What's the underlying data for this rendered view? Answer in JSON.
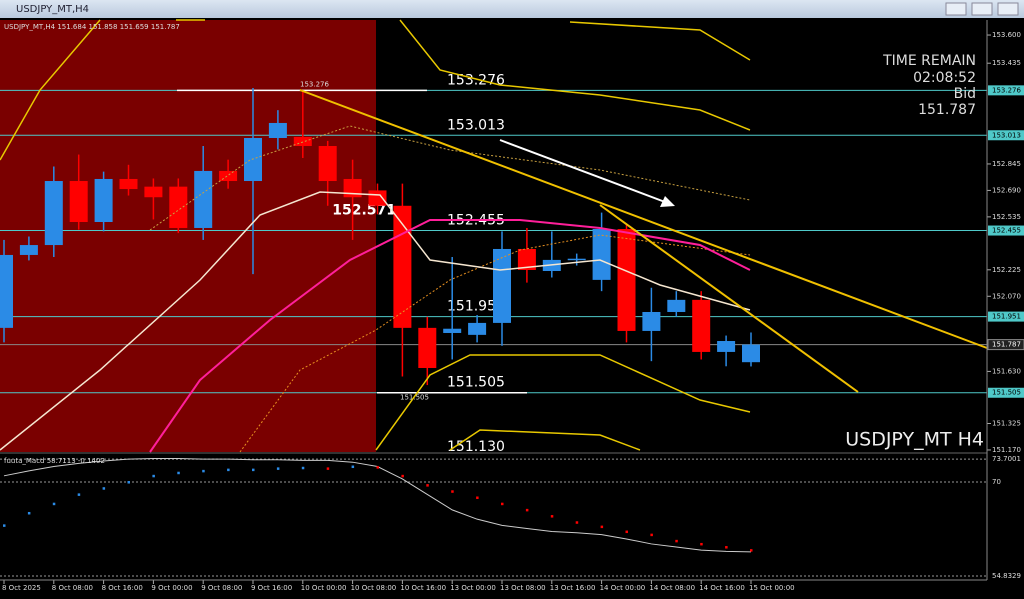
{
  "window_title": "USDJPY_MT,H4",
  "chart_data": {
    "type": "candlestick",
    "header": "USDJPY_MT,H4  151.684 151.858 151.659 151.787",
    "symbol_label": "USDJPY_MT H4",
    "time_remain_label": "TIME REMAIN",
    "time_remain": "02:08:52",
    "bid_label": "Bid",
    "bid": 151.787,
    "annotation": 152.571,
    "categories": [
      "8 Oct 2025",
      null,
      "8 Oct 08:00",
      null,
      "8 Oct 16:00",
      null,
      "9 Oct 00:00",
      null,
      "9 Oct 08:00",
      null,
      "9 Oct 16:00",
      null,
      "10 Oct 00:00",
      null,
      "10 Oct 08:00",
      null,
      "10 Oct 16:00",
      null,
      "13 Oct 00:00",
      null,
      "13 Oct 08:00",
      null,
      "13 Oct 16:00",
      null,
      "14 Oct 00:00",
      null,
      "14 Oct 08:00",
      null,
      "14 Oct 16:00",
      null,
      "15 Oct 00:00"
    ],
    "open": [
      151.885,
      152.312,
      152.37,
      152.745,
      152.505,
      152.757,
      152.712,
      152.712,
      152.47,
      152.804,
      152.745,
      152.997,
      153.003,
      152.95,
      152.757,
      152.69,
      152.6,
      151.885,
      151.855,
      151.844,
      151.914,
      152.347,
      152.218,
      152.283,
      152.166,
      152.464,
      151.867,
      151.978,
      152.049,
      151.744,
      151.684
    ],
    "high": [
      152.4,
      152.42,
      152.83,
      152.9,
      152.8,
      152.84,
      152.76,
      152.76,
      152.95,
      152.87,
      153.29,
      153.16,
      153.27,
      152.98,
      152.87,
      152.73,
      152.73,
      151.95,
      152.3,
      151.96,
      152.45,
      152.47,
      152.45,
      152.32,
      152.56,
      152.49,
      152.12,
      152.1,
      152.1,
      151.84,
      151.858
    ],
    "low": [
      151.8,
      152.28,
      152.3,
      152.46,
      152.45,
      152.66,
      152.52,
      152.44,
      152.4,
      152.7,
      152.2,
      152.93,
      152.88,
      152.6,
      152.4,
      152.55,
      151.6,
      151.55,
      151.7,
      151.8,
      151.78,
      152.15,
      152.18,
      152.25,
      152.1,
      151.8,
      151.69,
      151.95,
      151.7,
      151.66,
      151.659
    ],
    "close": [
      152.312,
      152.37,
      152.745,
      152.505,
      152.757,
      152.698,
      152.65,
      152.47,
      152.804,
      152.745,
      152.997,
      153.085,
      152.95,
      152.745,
      152.65,
      152.6,
      151.885,
      151.65,
      151.88,
      151.914,
      152.347,
      152.224,
      152.283,
      152.29,
      152.464,
      151.867,
      151.978,
      152.049,
      151.744,
      151.808,
      151.787
    ],
    "up_color": "#2b8be6",
    "down_color": "#ff0000",
    "ylim": [
      151.158,
      153.688
    ],
    "yticks": [
      {
        "value": 153.6,
        "label": "153.600"
      },
      153.435,
      152.845,
      {
        "value": 152.69,
        "label": "152.690"
      },
      152.535,
      152.225,
      {
        "value": 152.07,
        "label": "152.070"
      },
      {
        "value": 151.63,
        "label": "151.630"
      },
      151.325,
      {
        "value": 151.17,
        "label": "151.170"
      }
    ],
    "levels": [
      153.276,
      153.013,
      152.455,
      151.951,
      151.505,
      {
        "value": 151.13,
        "label": "151.130"
      }
    ],
    "oscillator": {
      "label": "fuuta_Macd 58.7113 -0.1402",
      "ylim": [
        54.5,
        74.2
      ],
      "yticks": [
        73.7001,
        70,
        54.8329
      ],
      "line": [
        71,
        71.8,
        72.5,
        73,
        73.4,
        73.7,
        73.8,
        73.8,
        73.7,
        73.7,
        73.6,
        73.6,
        73.5,
        73.5,
        73.2,
        72.5,
        70.5,
        68,
        65.5,
        64,
        63,
        62.5,
        62,
        61.8,
        61.5,
        60.8,
        60,
        59.5,
        59,
        58.8,
        58.7113
      ],
      "dots": [
        63,
        65,
        66.5,
        68,
        69,
        70,
        71,
        71.5,
        71.8,
        72,
        72,
        72.2,
        72.3,
        72.2,
        72.5,
        72.4,
        71,
        69.5,
        68.5,
        67.5,
        66.5,
        65.5,
        64.5,
        63.5,
        62.8,
        62,
        61.5,
        60.5,
        60,
        59.5,
        59
      ]
    }
  }
}
